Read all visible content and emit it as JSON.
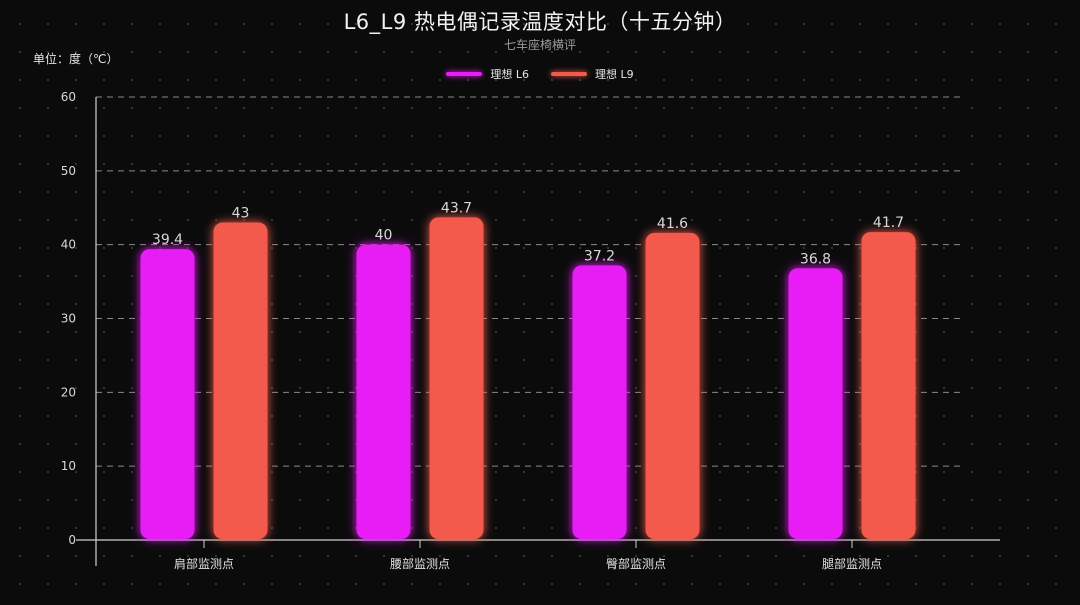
{
  "chart_data": {
    "type": "bar",
    "title": "L6_L9 热电偶记录温度对比（十五分钟）",
    "subtitle": "七车座椅横评",
    "ylabel": "单位：度（℃）",
    "categories": [
      "肩部监测点",
      "腰部监测点",
      "臀部监测点",
      "腿部监测点"
    ],
    "series": [
      {
        "name": "理想 L6",
        "values": [
          39.4,
          40,
          37.2,
          36.8
        ],
        "color": "#e81cf5"
      },
      {
        "name": "理想 L9",
        "values": [
          43,
          43.7,
          41.6,
          41.7
        ],
        "color": "#f45a4c"
      }
    ],
    "ylim": [
      0,
      60
    ],
    "yticks": [
      0,
      10,
      20,
      30,
      40,
      50,
      60
    ],
    "grid": true,
    "legend": "top-center"
  }
}
